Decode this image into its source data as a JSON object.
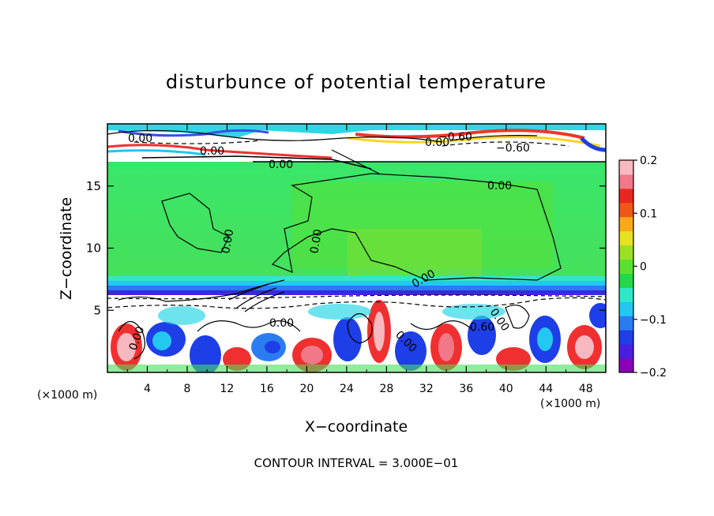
{
  "chart_data": {
    "type": "heatmap",
    "title": "disturbunce of potential temperature",
    "xlabel": "X−coordinate",
    "ylabel": "Z−coordinate",
    "x_unit": "(×1000 m)",
    "z_unit": "(×1000 m)",
    "xlim": [
      0,
      50
    ],
    "ylim": [
      0,
      20
    ],
    "x_ticks": [
      "4",
      "8",
      "12",
      "16",
      "20",
      "24",
      "28",
      "32",
      "36",
      "40",
      "44",
      "48"
    ],
    "y_ticks": [
      "5",
      "10",
      "15"
    ],
    "colorbar": {
      "range": [
        -0.2,
        0.2
      ],
      "ticks": [
        "0.2",
        "0.1",
        "0",
        "−0.1",
        "−0.2"
      ],
      "colors": [
        "#8a00b8",
        "#4a1ee0",
        "#1e3ee8",
        "#2a7cf0",
        "#22c8f0",
        "#30e8c8",
        "#22d84a",
        "#5ae030",
        "#9ce024",
        "#e8e020",
        "#f8a818",
        "#f05818",
        "#e82820",
        "#f07888",
        "#f8b8c0"
      ]
    },
    "contour_labels": [
      "0.00",
      "0.00",
      "0.00",
      "0.00",
      "0.00",
      "0.00",
      "0.00",
      "0.00",
      "0.00",
      "0.00",
      "0.00",
      "0.00",
      "−0.60",
      "−0.60",
      "0.60"
    ],
    "footer": "CONTOUR INTERVAL = 3.000E−01"
  }
}
